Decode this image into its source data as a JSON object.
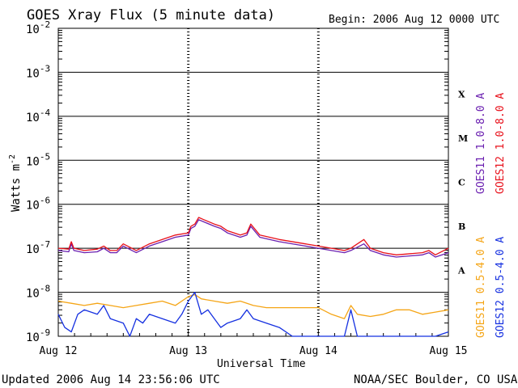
{
  "chart_data": {
    "type": "line",
    "title": "GOES Xray Flux (5 minute data)",
    "begin_label": "Begin:  2006 Aug 12 0000 UTC",
    "xlabel": "Universal Time",
    "ylabel_base": "Watts m",
    "ylabel_exp": "-2",
    "y_scale": "log",
    "ylim": [
      1e-09,
      0.01
    ],
    "y_ticks": [
      {
        "base": "10",
        "exp": "-2",
        "value": -2
      },
      {
        "base": "10",
        "exp": "-3",
        "value": -3
      },
      {
        "base": "10",
        "exp": "-4",
        "value": -4
      },
      {
        "base": "10",
        "exp": "-5",
        "value": -5
      },
      {
        "base": "10",
        "exp": "-6",
        "value": -6
      },
      {
        "base": "10",
        "exp": "-7",
        "value": -7
      },
      {
        "base": "10",
        "exp": "-8",
        "value": -8
      },
      {
        "base": "10",
        "exp": "-9",
        "value": -9
      }
    ],
    "x_ticks": [
      {
        "label": "Aug 12",
        "day": 0
      },
      {
        "label": "Aug 13",
        "day": 1
      },
      {
        "label": "Aug 14",
        "day": 2
      },
      {
        "label": "Aug 15",
        "day": 3
      }
    ],
    "xlim_days": [
      0,
      3
    ],
    "flare_classes": [
      {
        "label": "X",
        "value": -3.5
      },
      {
        "label": "M",
        "value": -4.5
      },
      {
        "label": "C",
        "value": -5.5
      },
      {
        "label": "B",
        "value": -6.5
      },
      {
        "label": "A",
        "value": -7.5
      }
    ],
    "grid_levels": [
      -3,
      -4,
      -5,
      -6,
      -7,
      -8
    ],
    "series": [
      {
        "name": "GOES11 1.0-8.0 A",
        "color": "#6a1fb0",
        "points": [
          [
            0,
            -7.05
          ],
          [
            0.08,
            -7.08
          ],
          [
            0.1,
            -6.9
          ],
          [
            0.12,
            -7.05
          ],
          [
            0.2,
            -7.1
          ],
          [
            0.3,
            -7.08
          ],
          [
            0.35,
            -7.0
          ],
          [
            0.4,
            -7.1
          ],
          [
            0.45,
            -7.1
          ],
          [
            0.5,
            -6.95
          ],
          [
            0.6,
            -7.1
          ],
          [
            0.7,
            -6.95
          ],
          [
            0.8,
            -6.85
          ],
          [
            0.9,
            -6.75
          ],
          [
            1.0,
            -6.7
          ],
          [
            1.02,
            -6.55
          ],
          [
            1.05,
            -6.5
          ],
          [
            1.08,
            -6.35
          ],
          [
            1.12,
            -6.4
          ],
          [
            1.2,
            -6.5
          ],
          [
            1.25,
            -6.55
          ],
          [
            1.3,
            -6.65
          ],
          [
            1.4,
            -6.75
          ],
          [
            1.45,
            -6.7
          ],
          [
            1.48,
            -6.5
          ],
          [
            1.55,
            -6.75
          ],
          [
            1.7,
            -6.85
          ],
          [
            1.9,
            -6.95
          ],
          [
            2.0,
            -7.0
          ],
          [
            2.1,
            -7.05
          ],
          [
            2.2,
            -7.1
          ],
          [
            2.25,
            -7.05
          ],
          [
            2.35,
            -6.9
          ],
          [
            2.4,
            -7.05
          ],
          [
            2.5,
            -7.15
          ],
          [
            2.6,
            -7.2
          ],
          [
            2.8,
            -7.15
          ],
          [
            2.85,
            -7.1
          ],
          [
            2.9,
            -7.2
          ],
          [
            3.0,
            -7.1
          ]
        ]
      },
      {
        "name": "GOES12 1.0-8.0 A",
        "color": "#e8101a",
        "points": [
          [
            0,
            -7.0
          ],
          [
            0.08,
            -7.02
          ],
          [
            0.1,
            -6.85
          ],
          [
            0.12,
            -7.0
          ],
          [
            0.2,
            -7.05
          ],
          [
            0.3,
            -7.02
          ],
          [
            0.35,
            -6.95
          ],
          [
            0.4,
            -7.05
          ],
          [
            0.45,
            -7.05
          ],
          [
            0.5,
            -6.9
          ],
          [
            0.6,
            -7.05
          ],
          [
            0.7,
            -6.9
          ],
          [
            0.8,
            -6.8
          ],
          [
            0.9,
            -6.7
          ],
          [
            1.0,
            -6.65
          ],
          [
            1.02,
            -6.5
          ],
          [
            1.05,
            -6.45
          ],
          [
            1.08,
            -6.3
          ],
          [
            1.12,
            -6.35
          ],
          [
            1.2,
            -6.45
          ],
          [
            1.25,
            -6.5
          ],
          [
            1.3,
            -6.6
          ],
          [
            1.4,
            -6.7
          ],
          [
            1.45,
            -6.65
          ],
          [
            1.48,
            -6.45
          ],
          [
            1.55,
            -6.7
          ],
          [
            1.7,
            -6.8
          ],
          [
            1.9,
            -6.9
          ],
          [
            2.0,
            -6.95
          ],
          [
            2.1,
            -7.0
          ],
          [
            2.2,
            -7.05
          ],
          [
            2.25,
            -7.0
          ],
          [
            2.35,
            -6.8
          ],
          [
            2.4,
            -7.0
          ],
          [
            2.5,
            -7.1
          ],
          [
            2.6,
            -7.15
          ],
          [
            2.8,
            -7.1
          ],
          [
            2.85,
            -7.05
          ],
          [
            2.9,
            -7.15
          ],
          [
            3.0,
            -7.0
          ]
        ]
      },
      {
        "name": "GOES11 0.5-4.0 A",
        "color": "#f5a516",
        "points": [
          [
            0,
            -8.2
          ],
          [
            0.1,
            -8.25
          ],
          [
            0.2,
            -8.3
          ],
          [
            0.3,
            -8.25
          ],
          [
            0.4,
            -8.3
          ],
          [
            0.5,
            -8.35
          ],
          [
            0.6,
            -8.3
          ],
          [
            0.7,
            -8.25
          ],
          [
            0.8,
            -8.2
          ],
          [
            0.9,
            -8.3
          ],
          [
            1.0,
            -8.1
          ],
          [
            1.05,
            -8.05
          ],
          [
            1.1,
            -8.15
          ],
          [
            1.2,
            -8.2
          ],
          [
            1.3,
            -8.25
          ],
          [
            1.4,
            -8.2
          ],
          [
            1.5,
            -8.3
          ],
          [
            1.6,
            -8.35
          ],
          [
            1.7,
            -8.35
          ],
          [
            1.8,
            -8.35
          ],
          [
            2.0,
            -8.35
          ],
          [
            2.1,
            -8.5
          ],
          [
            2.2,
            -8.6
          ],
          [
            2.25,
            -8.3
          ],
          [
            2.3,
            -8.5
          ],
          [
            2.4,
            -8.55
          ],
          [
            2.5,
            -8.5
          ],
          [
            2.6,
            -8.4
          ],
          [
            2.7,
            -8.4
          ],
          [
            2.8,
            -8.5
          ],
          [
            2.9,
            -8.45
          ],
          [
            3.0,
            -8.4
          ]
        ]
      },
      {
        "name": "GOES12 0.5-4.0 A",
        "color": "#1530e0",
        "points": [
          [
            0,
            -8.5
          ],
          [
            0.05,
            -8.8
          ],
          [
            0.1,
            -8.9
          ],
          [
            0.15,
            -8.5
          ],
          [
            0.2,
            -8.4
          ],
          [
            0.3,
            -8.5
          ],
          [
            0.35,
            -8.3
          ],
          [
            0.4,
            -8.6
          ],
          [
            0.5,
            -8.7
          ],
          [
            0.55,
            -9.0
          ],
          [
            0.6,
            -8.6
          ],
          [
            0.65,
            -8.7
          ],
          [
            0.7,
            -8.5
          ],
          [
            0.8,
            -8.6
          ],
          [
            0.9,
            -8.7
          ],
          [
            0.95,
            -8.5
          ],
          [
            1.0,
            -8.2
          ],
          [
            1.05,
            -8.0
          ],
          [
            1.1,
            -8.5
          ],
          [
            1.15,
            -8.4
          ],
          [
            1.2,
            -8.6
          ],
          [
            1.25,
            -8.8
          ],
          [
            1.3,
            -8.7
          ],
          [
            1.4,
            -8.6
          ],
          [
            1.45,
            -8.4
          ],
          [
            1.5,
            -8.6
          ],
          [
            1.6,
            -8.7
          ],
          [
            1.7,
            -8.8
          ],
          [
            1.8,
            -9.0
          ],
          [
            1.9,
            -9.0
          ],
          [
            2.0,
            -9.0
          ],
          [
            2.1,
            -9.0
          ],
          [
            2.2,
            -9.0
          ],
          [
            2.25,
            -8.4
          ],
          [
            2.3,
            -9.0
          ],
          [
            2.4,
            -9.0
          ],
          [
            2.5,
            -9.0
          ],
          [
            2.6,
            -9.0
          ],
          [
            2.7,
            -9.0
          ],
          [
            2.8,
            -9.0
          ],
          [
            2.9,
            -9.0
          ],
          [
            3.0,
            -8.9
          ]
        ]
      }
    ],
    "legend": "right, vertical"
  },
  "footer": {
    "updated": "Updated 2006 Aug 14 23:56:06 UTC",
    "credit": "NOAA/SEC Boulder, CO USA"
  }
}
